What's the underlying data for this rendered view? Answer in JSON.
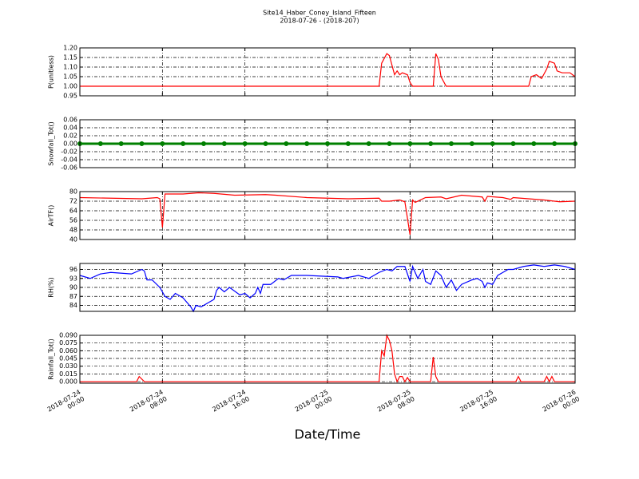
{
  "chart_data": {
    "type": "line",
    "title": "Site14_Haber_Coney_Island_Fifteen",
    "subtitle": "2018-07-26 - (2018-207)",
    "xlabel": "Date/Time",
    "xlim": [
      "2018-07-24 00:00",
      "2018-07-26 00:00"
    ],
    "xticks": [
      "2018-07-24 00:00",
      "2018-07-24 08:00",
      "2018-07-24 16:00",
      "2018-07-25 00:00",
      "2018-07-25 08:00",
      "2018-07-25 16:00",
      "2018-07-26 00:00"
    ],
    "grid": true,
    "panels": [
      {
        "ylabel": "P(unitless)",
        "ylim": [
          0.95,
          1.2
        ],
        "yticks": [
          0.95,
          {
            "value": 1,
            "label": "1.00"
          },
          1.05,
          {
            "value": 1.1,
            "label": "1.10"
          },
          1.15,
          {
            "value": 1.2,
            "label": "1.20"
          }
        ],
        "x": [
          "2018-07-24 00:00",
          "2018-07-25 05:00",
          "2018-07-25 05:15",
          "2018-07-25 05:45",
          "2018-07-25 06:00",
          "2018-07-25 06:30",
          "2018-07-25 06:45",
          "2018-07-25 07:00",
          "2018-07-25 07:15",
          "2018-07-25 07:45",
          "2018-07-25 08:00",
          "2018-07-25 08:15",
          "2018-07-25 10:15",
          "2018-07-25 10:30",
          "2018-07-25 10:45",
          "2018-07-25 11:00",
          "2018-07-25 11:30",
          "2018-07-25 19:30",
          "2018-07-25 19:45",
          "2018-07-25 20:15",
          "2018-07-25 20:45",
          "2018-07-25 21:15",
          "2018-07-25 21:30",
          "2018-07-25 22:00",
          "2018-07-25 22:15",
          "2018-07-25 22:45",
          "2018-07-25 23:30",
          "2018-07-26 00:00"
        ],
        "series": [
          {
            "color": "#ff0000",
            "values": [
              1.0,
              1.0,
              1.12,
              1.17,
              1.16,
              1.06,
              1.08,
              1.06,
              1.07,
              1.06,
              1.02,
              1.0,
              1.0,
              1.17,
              1.14,
              1.05,
              1.0,
              1.0,
              1.05,
              1.06,
              1.04,
              1.09,
              1.13,
              1.12,
              1.08,
              1.07,
              1.07,
              1.05
            ]
          }
        ]
      },
      {
        "ylabel": "Snowfall_Tot()",
        "ylim": [
          -0.06,
          0.06
        ],
        "markers": true,
        "yticks": [
          -0.06,
          -0.04,
          -0.02,
          {
            "value": 0,
            "label": "0.00"
          },
          0.02,
          0.04,
          0.06
        ],
        "x": [
          "2018-07-24 00:00",
          "2018-07-24 02:00",
          "2018-07-24 04:00",
          "2018-07-24 06:00",
          "2018-07-24 08:00",
          "2018-07-24 10:00",
          "2018-07-24 12:00",
          "2018-07-24 14:00",
          "2018-07-24 16:00",
          "2018-07-24 18:00",
          "2018-07-24 20:00",
          "2018-07-24 22:00",
          "2018-07-25 00:00",
          "2018-07-25 02:00",
          "2018-07-25 04:00",
          "2018-07-25 06:00",
          "2018-07-25 08:00",
          "2018-07-25 10:00",
          "2018-07-25 12:00",
          "2018-07-25 14:00",
          "2018-07-25 16:00",
          "2018-07-25 18:00",
          "2018-07-25 20:00",
          "2018-07-25 22:00",
          "2018-07-26 00:00"
        ],
        "series": [
          {
            "color": "#008000",
            "values": [
              0,
              0,
              0,
              0,
              0,
              0,
              0,
              0,
              0,
              0,
              0,
              0,
              0,
              0,
              0,
              0,
              0,
              0,
              0,
              0,
              0,
              0,
              0,
              0,
              0
            ]
          }
        ]
      },
      {
        "ylabel": "AirTF()",
        "ylim": [
          40,
          80
        ],
        "yticks": [
          40,
          48,
          56,
          64,
          72,
          80
        ],
        "x": [
          "2018-07-24 00:00",
          "2018-07-24 03:00",
          "2018-07-24 06:00",
          "2018-07-24 07:30",
          "2018-07-24 07:45",
          "2018-07-24 08:00",
          "2018-07-24 08:15",
          "2018-07-24 10:00",
          "2018-07-24 11:30",
          "2018-07-24 13:00",
          "2018-07-24 15:00",
          "2018-07-24 18:00",
          "2018-07-24 19:00",
          "2018-07-24 22:00",
          "2018-07-25 02:00",
          "2018-07-25 05:00",
          "2018-07-25 05:15",
          "2018-07-25 06:00",
          "2018-07-25 07:00",
          "2018-07-25 07:30",
          "2018-07-25 08:00",
          "2018-07-25 08:15",
          "2018-07-25 08:30",
          "2018-07-25 09:30",
          "2018-07-25 11:00",
          "2018-07-25 11:30",
          "2018-07-25 13:00",
          "2018-07-25 15:00",
          "2018-07-25 15:15",
          "2018-07-25 15:30",
          "2018-07-25 17:00",
          "2018-07-25 17:45",
          "2018-07-25 18:00",
          "2018-07-25 21:00",
          "2018-07-25 22:30",
          "2018-07-26 00:00"
        ],
        "series": [
          {
            "color": "#ff0000",
            "values": [
              75,
              74.5,
              74,
              75,
              74,
              50,
              78,
              78,
              79,
              78.5,
              77,
              77.5,
              77,
              75,
              74,
              74.5,
              72,
              72,
              73,
              71.5,
              44,
              73,
              71,
              75,
              75.5,
              74,
              77,
              75.5,
              72,
              76,
              75,
              73.5,
              75,
              73,
              71.5,
              72
            ]
          }
        ]
      },
      {
        "ylabel": "RH(%)",
        "ylim": [
          82,
          98
        ],
        "yticks": [
          84,
          87,
          90,
          93,
          96
        ],
        "x": [
          "2018-07-24 00:00",
          "2018-07-24 01:00",
          "2018-07-24 02:00",
          "2018-07-24 03:00",
          "2018-07-24 05:00",
          "2018-07-24 06:00",
          "2018-07-24 06:15",
          "2018-07-24 06:30",
          "2018-07-24 07:00",
          "2018-07-24 07:45",
          "2018-07-24 08:15",
          "2018-07-24 08:45",
          "2018-07-24 09:15",
          "2018-07-24 10:00",
          "2018-07-24 10:45",
          "2018-07-24 11:00",
          "2018-07-24 11:15",
          "2018-07-24 11:45",
          "2018-07-24 13:00",
          "2018-07-24 13:15",
          "2018-07-24 13:30",
          "2018-07-24 14:00",
          "2018-07-24 14:30",
          "2018-07-24 15:30",
          "2018-07-24 16:00",
          "2018-07-24 16:30",
          "2018-07-24 17:00",
          "2018-07-24 17:15",
          "2018-07-24 17:30",
          "2018-07-24 17:45",
          "2018-07-24 18:30",
          "2018-07-24 19:15",
          "2018-07-24 19:45",
          "2018-07-24 20:30",
          "2018-07-24 22:00",
          "2018-07-25 01:00",
          "2018-07-25 01:30",
          "2018-07-25 03:00",
          "2018-07-25 04:00",
          "2018-07-25 05:00",
          "2018-07-25 05:45",
          "2018-07-25 06:15",
          "2018-07-25 06:45",
          "2018-07-25 07:30",
          "2018-07-25 08:00",
          "2018-07-25 08:15",
          "2018-07-25 08:45",
          "2018-07-25 09:15",
          "2018-07-25 09:30",
          "2018-07-25 10:00",
          "2018-07-25 10:30",
          "2018-07-25 11:00",
          "2018-07-25 11:30",
          "2018-07-25 12:00",
          "2018-07-25 12:30",
          "2018-07-25 13:00",
          "2018-07-25 14:00",
          "2018-07-25 14:30",
          "2018-07-25 15:00",
          "2018-07-25 15:15",
          "2018-07-25 15:30",
          "2018-07-25 16:00",
          "2018-07-25 16:30",
          "2018-07-25 17:00",
          "2018-07-25 17:30",
          "2018-07-25 18:00",
          "2018-07-25 19:00",
          "2018-07-25 20:00",
          "2018-07-25 21:00",
          "2018-07-25 22:00",
          "2018-07-25 23:00",
          "2018-07-26 00:00"
        ],
        "series": [
          {
            "color": "#0000ff",
            "values": [
              94,
              93,
              94.5,
              95,
              94.5,
              96,
              95.5,
              92.5,
              92.5,
              90,
              87,
              86,
              88,
              86.5,
              83.5,
              82,
              84,
              83.5,
              86,
              89,
              90,
              88.5,
              90,
              87.5,
              88,
              86.5,
              88,
              90,
              88,
              91,
              91,
              93,
              92.5,
              94,
              94,
              93.5,
              93,
              94,
              93,
              95,
              96,
              95.5,
              97,
              97,
              92,
              97,
              93,
              96,
              92,
              91,
              95.5,
              94,
              90,
              92.5,
              89,
              91,
              92.5,
              93,
              92,
              90,
              91.5,
              91,
              94,
              95,
              96,
              96,
              97,
              97.5,
              97,
              97.5,
              97,
              96
            ]
          }
        ]
      },
      {
        "ylabel": "Rainfall_Tot()",
        "ylim": [
          -0.003,
          0.09
        ],
        "yticks": [
          {
            "value": 0,
            "label": "0.000"
          },
          0.015,
          {
            "value": 0.03,
            "label": "0.030"
          },
          0.045,
          {
            "value": 0.06,
            "label": "0.060"
          },
          0.075,
          {
            "value": 0.09,
            "label": "0.090"
          }
        ],
        "x": [
          "2018-07-24 00:00",
          "2018-07-24 05:30",
          "2018-07-24 05:45",
          "2018-07-24 06:15",
          "2018-07-25 05:00",
          "2018-07-25 05:15",
          "2018-07-25 05:30",
          "2018-07-25 05:45",
          "2018-07-25 06:00",
          "2018-07-25 06:15",
          "2018-07-25 06:30",
          "2018-07-25 06:45",
          "2018-07-25 07:00",
          "2018-07-25 07:15",
          "2018-07-25 07:30",
          "2018-07-25 07:45",
          "2018-07-25 08:00",
          "2018-07-25 10:00",
          "2018-07-25 10:15",
          "2018-07-25 10:30",
          "2018-07-25 10:45",
          "2018-07-25 18:15",
          "2018-07-25 18:30",
          "2018-07-25 18:45",
          "2018-07-25 21:00",
          "2018-07-25 21:15",
          "2018-07-25 21:30",
          "2018-07-25 21:45",
          "2018-07-25 22:00",
          "2018-07-26 00:00"
        ],
        "series": [
          {
            "color": "#ff0000",
            "values": [
              0,
              0,
              0.01,
              0,
              0,
              0.06,
              0.05,
              0.09,
              0.08,
              0.06,
              0.015,
              0,
              0.01,
              0.01,
              0,
              0.008,
              0,
              0,
              0.048,
              0.01,
              0,
              0,
              0.01,
              0,
              0,
              0.01,
              0,
              0.01,
              0,
              0
            ]
          }
        ]
      }
    ]
  }
}
